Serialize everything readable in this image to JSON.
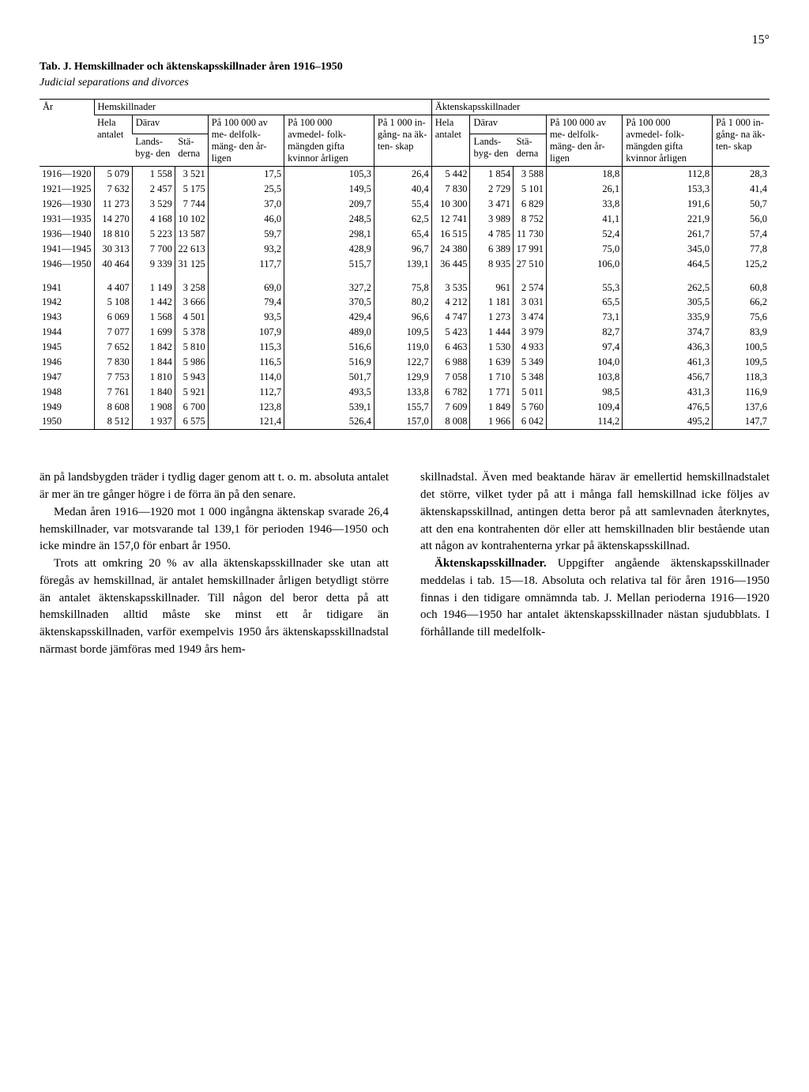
{
  "page_number": "15°",
  "table_title": "Tab. J. Hemskillnader och äktenskapsskillnader åren 1916–1950",
  "table_subtitle": "Judicial separations and divorces",
  "headers": {
    "year": "År",
    "hem_group": "Hemskillnader",
    "akt_group": "Äktenskapsskillnader",
    "hela": "Hela\nantalet",
    "darav": "Därav",
    "lands": "Lands-\nbyg-\nden",
    "sta": "Stä-\nderna",
    "pa1": "På\n100 000\nav me-\ndelfolk-\nmäng-\nden år-\nligen",
    "pa2": "På\n100 000\navmedel-\nfolk-\nmängden\ngifta\nkvinnor\nårligen",
    "pa3": "På\n1 000\nin-\ngång-\nna äk-\nten-\nskap"
  },
  "rows": [
    {
      "year": "1916—1920",
      "h": [
        "5 079",
        "1 558",
        "3 521",
        "17,5",
        "105,3",
        "26,4"
      ],
      "a": [
        "5 442",
        "1 854",
        "3 588",
        "18,8",
        "112,8",
        "28,3"
      ]
    },
    {
      "year": "1921—1925",
      "h": [
        "7 632",
        "2 457",
        "5 175",
        "25,5",
        "149,5",
        "40,4"
      ],
      "a": [
        "7 830",
        "2 729",
        "5 101",
        "26,1",
        "153,3",
        "41,4"
      ]
    },
    {
      "year": "1926—1930",
      "h": [
        "11 273",
        "3 529",
        "7 744",
        "37,0",
        "209,7",
        "55,4"
      ],
      "a": [
        "10 300",
        "3 471",
        "6 829",
        "33,8",
        "191,6",
        "50,7"
      ]
    },
    {
      "year": "1931—1935",
      "h": [
        "14 270",
        "4 168",
        "10 102",
        "46,0",
        "248,5",
        "62,5"
      ],
      "a": [
        "12 741",
        "3 989",
        "8 752",
        "41,1",
        "221,9",
        "56,0"
      ]
    },
    {
      "year": "1936—1940",
      "h": [
        "18 810",
        "5 223",
        "13 587",
        "59,7",
        "298,1",
        "65,4"
      ],
      "a": [
        "16 515",
        "4 785",
        "11 730",
        "52,4",
        "261,7",
        "57,4"
      ]
    },
    {
      "year": "1941—1945",
      "h": [
        "30 313",
        "7 700",
        "22 613",
        "93,2",
        "428,9",
        "96,7"
      ],
      "a": [
        "24 380",
        "6 389",
        "17 991",
        "75,0",
        "345,0",
        "77,8"
      ]
    },
    {
      "year": "1946—1950",
      "h": [
        "40 464",
        "9 339",
        "31 125",
        "117,7",
        "515,7",
        "139,1"
      ],
      "a": [
        "36 445",
        "8 935",
        "27 510",
        "106,0",
        "464,5",
        "125,2"
      ]
    },
    {
      "year": "1941",
      "h": [
        "4 407",
        "1 149",
        "3 258",
        "69,0",
        "327,2",
        "75,8"
      ],
      "a": [
        "3 535",
        "961",
        "2 574",
        "55,3",
        "262,5",
        "60,8"
      ]
    },
    {
      "year": "1942",
      "h": [
        "5 108",
        "1 442",
        "3 666",
        "79,4",
        "370,5",
        "80,2"
      ],
      "a": [
        "4 212",
        "1 181",
        "3 031",
        "65,5",
        "305,5",
        "66,2"
      ]
    },
    {
      "year": "1943",
      "h": [
        "6 069",
        "1 568",
        "4 501",
        "93,5",
        "429,4",
        "96,6"
      ],
      "a": [
        "4 747",
        "1 273",
        "3 474",
        "73,1",
        "335,9",
        "75,6"
      ]
    },
    {
      "year": "1944",
      "h": [
        "7 077",
        "1 699",
        "5 378",
        "107,9",
        "489,0",
        "109,5"
      ],
      "a": [
        "5 423",
        "1 444",
        "3 979",
        "82,7",
        "374,7",
        "83,9"
      ]
    },
    {
      "year": "1945",
      "h": [
        "7 652",
        "1 842",
        "5 810",
        "115,3",
        "516,6",
        "119,0"
      ],
      "a": [
        "6 463",
        "1 530",
        "4 933",
        "97,4",
        "436,3",
        "100,5"
      ]
    },
    {
      "year": "1946",
      "h": [
        "7 830",
        "1 844",
        "5 986",
        "116,5",
        "516,9",
        "122,7"
      ],
      "a": [
        "6 988",
        "1 639",
        "5 349",
        "104,0",
        "461,3",
        "109,5"
      ]
    },
    {
      "year": "1947",
      "h": [
        "7 753",
        "1 810",
        "5 943",
        "114,0",
        "501,7",
        "129,9"
      ],
      "a": [
        "7 058",
        "1 710",
        "5 348",
        "103,8",
        "456,7",
        "118,3"
      ]
    },
    {
      "year": "1948",
      "h": [
        "7 761",
        "1 840",
        "5 921",
        "112,7",
        "493,5",
        "133,8"
      ],
      "a": [
        "6 782",
        "1 771",
        "5 011",
        "98,5",
        "431,3",
        "116,9"
      ]
    },
    {
      "year": "1949",
      "h": [
        "8 608",
        "1 908",
        "6 700",
        "123,8",
        "539,1",
        "155,7"
      ],
      "a": [
        "7 609",
        "1 849",
        "5 760",
        "109,4",
        "476,5",
        "137,6"
      ]
    },
    {
      "year": "1950",
      "h": [
        "8 512",
        "1 937",
        "6 575",
        "121,4",
        "526,4",
        "157,0"
      ],
      "a": [
        "8 008",
        "1 966",
        "6 042",
        "114,2",
        "495,2",
        "147,7"
      ]
    }
  ],
  "paragraphs": {
    "p1": "än på landsbygden träder i tydlig dager genom att t. o. m. absoluta antalet är mer än tre gånger högre i de förra än på den senare.",
    "p2": "Medan åren 1916—1920 mot 1 000 ingångna äktenskap svarade 26,4 hemskillnader, var motsvarande tal 139,1 för perioden 1946—1950 och icke mindre än 157,0 för enbart år 1950.",
    "p3": "Trots att omkring 20 % av alla äktenskapsskillnader ske utan att föregås av hemskillnad, är antalet hemskillnader årligen betydligt större än antalet äktenskapsskillnader. Till någon del beror detta på att hemskillnaden alltid måste ske minst ett år tidigare än äktenskapsskillnaden, varför exempelvis 1950 års äktenskapsskillnadstal närmast borde jämföras med 1949 års hem-",
    "p4": "skillnadstal. Även med beaktande härav är emellertid hemskillnadstalet det större, vilket tyder på att i många fall hemskillnad icke följes av äktenskapsskillnad, antingen detta beror på att samlevnaden återknytes, att den ena kontrahenten dör eller att hemskillnaden blir bestående utan att någon av kontrahenterna yrkar på äktenskapsskillnad.",
    "p5_bold": "Äktenskapsskillnader.",
    "p5": " Uppgifter angående äktenskapsskillnader meddelas i tab. 15—18. Absoluta och relativa tal för åren 1916—1950 finnas i den tidigare omnämnda tab. J. Mellan perioderna 1916—1920 och 1946—1950 har antalet äktenskapsskillnader nästan sjudubblats. I förhållande till medelfolk-"
  }
}
